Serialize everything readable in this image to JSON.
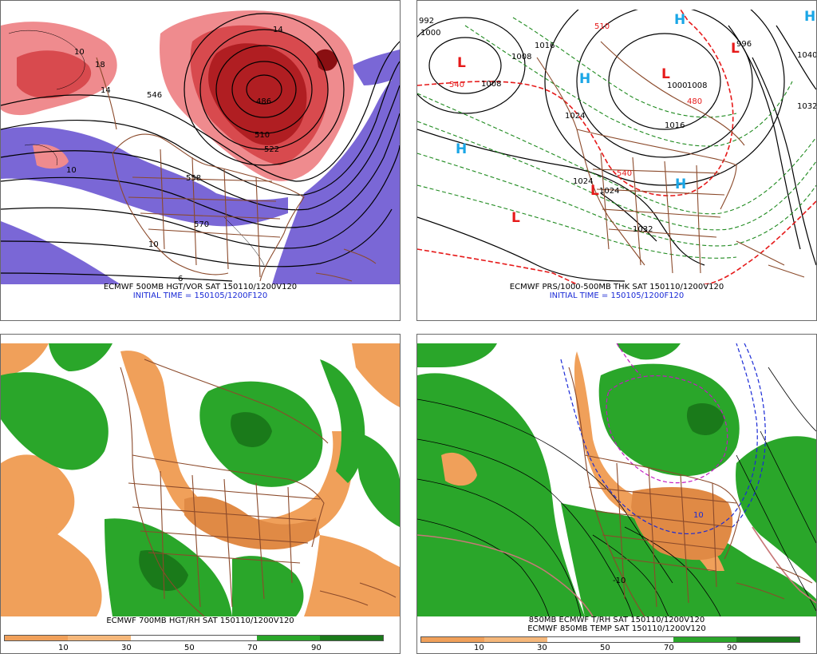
{
  "panels": {
    "top_left": {
      "caption1": "ECMWF 500MB HGT/VOR SAT 150110/1200V120",
      "caption2": "INITIAL TIME = 150105/1200F120",
      "contour_labels": [
        "546",
        "558",
        "570",
        "486",
        "510",
        "522",
        "10",
        "14",
        "18",
        "10",
        "10",
        "14",
        "6"
      ],
      "colors": {
        "positive_vort": "#c0262b",
        "positive_vort_light": "#ef8b8e",
        "negative_vort": "#7a67d6"
      }
    },
    "top_right": {
      "caption1": "ECMWF PRS/1000-500MB THK SAT 150110/1200V120",
      "caption2": "INITIAL TIME = 150105/1200F120",
      "contour_labels": [
        "992",
        "1000",
        "1008",
        "1016",
        "1008",
        "1000",
        "1008",
        "1024",
        "1016",
        "1024",
        "1032",
        "1040",
        "1032",
        "1024",
        "996",
        "540",
        "540",
        "480",
        "510"
      ],
      "highs": [
        "H",
        "H",
        "H",
        "H",
        "H"
      ],
      "lows": [
        "L",
        "L",
        "L",
        "L",
        "L"
      ],
      "colors": {
        "high": "#1aa6e6",
        "low": "#e61a1a",
        "thickness_cold": "#e61a1a",
        "thickness": "#1f8a1f"
      }
    },
    "bottom_left": {
      "caption1": "ECMWF 700MB HGT/RH SAT 150110/1200V120",
      "colorbar_ticks": [
        "10",
        "30",
        "50",
        "70",
        "90"
      ],
      "colors": {
        "dry": "#f0a05a",
        "moist": "#2aa62a",
        "very_moist": "#1a7a1a"
      }
    },
    "bottom_right": {
      "caption1": "850MB ECMWF T/RH SAT 150110/1200V120",
      "caption2": "ECMWF 850MB TEMP SAT 150110/1200V120",
      "colorbar_ticks": [
        "10",
        "30",
        "50",
        "70",
        "90"
      ],
      "contour_labels": [
        "-10",
        "10"
      ],
      "colors": {
        "dry": "#f0a05a",
        "moist": "#2aa62a",
        "cold_isotherm": "#1a2ad6",
        "very_cold_isotherm": "#c21ac2",
        "warm_isotherm": "#c87878"
      }
    }
  }
}
